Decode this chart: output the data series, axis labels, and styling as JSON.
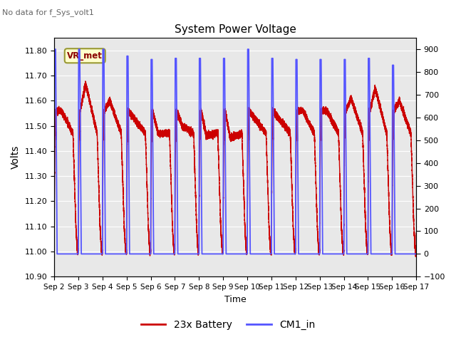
{
  "title": "System Power Voltage",
  "no_data_label": "No data for f_Sys_volt1",
  "ylabel_left": "Volts",
  "xlabel": "Time",
  "ylim_left": [
    10.9,
    11.85
  ],
  "ylim_right": [
    -100,
    950
  ],
  "yticks_left": [
    10.9,
    11.0,
    11.1,
    11.2,
    11.3,
    11.4,
    11.5,
    11.6,
    11.7,
    11.8
  ],
  "yticks_right": [
    -100,
    0,
    100,
    200,
    300,
    400,
    500,
    600,
    700,
    800,
    900
  ],
  "xtick_labels": [
    "Sep 2",
    "Sep 3",
    "Sep 4",
    "Sep 5",
    "Sep 6",
    "Sep 7",
    "Sep 8",
    "Sep 9",
    "Sep 10",
    "Sep 11",
    "Sep 12",
    "Sep 13",
    "Sep 14",
    "Sep 15",
    "Sep 16",
    "Sep 17"
  ],
  "vr_met_label": "VR_met",
  "legend_red": "23x Battery",
  "legend_blue": "CM1_in",
  "red_color": "#cc0000",
  "blue_color": "#5555ff",
  "bg_color": "#e8e8e8",
  "grid_color": "#d8d8d8",
  "n_days": 15,
  "n_cycles": 15,
  "red_peaks": [
    11.56,
    11.67,
    11.6,
    11.53,
    11.47,
    11.5,
    11.46,
    11.45,
    11.53,
    11.53,
    11.56,
    11.56,
    11.61,
    11.65,
    11.6
  ],
  "blue_peaks": [
    900,
    900,
    900,
    870,
    855,
    860,
    860,
    860,
    900,
    860,
    855,
    855,
    855,
    860,
    830
  ]
}
